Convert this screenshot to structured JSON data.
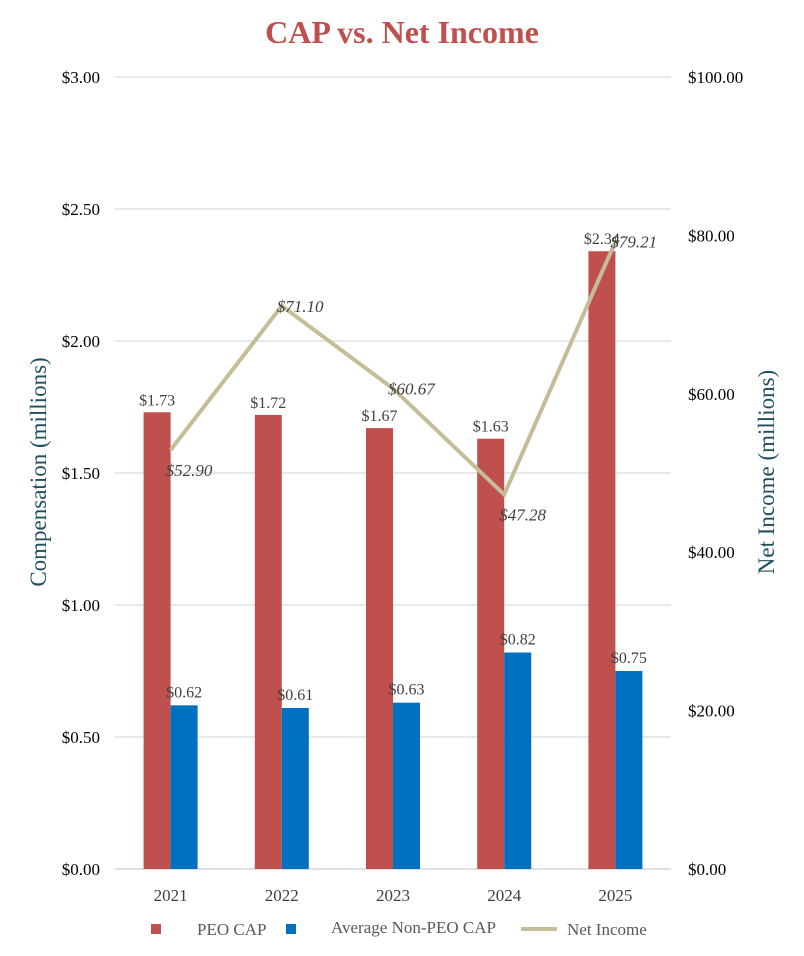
{
  "chart_data": {
    "type": "bar",
    "title": "CAP vs. Net Income",
    "categories": [
      "2021",
      "2022",
      "2023",
      "2024",
      "2025"
    ],
    "series": [
      {
        "name": "PEO CAP",
        "axis": "left",
        "kind": "bar",
        "values": [
          1.73,
          1.72,
          1.67,
          1.63,
          2.34
        ],
        "labels": [
          "$1.73",
          "$1.72",
          "$1.67",
          "$1.63",
          "$2.34"
        ]
      },
      {
        "name": "Average Non-PEO CAP",
        "axis": "left",
        "kind": "bar",
        "values": [
          0.62,
          0.61,
          0.63,
          0.82,
          0.75
        ],
        "labels": [
          "$0.62",
          "$0.61",
          "$0.63",
          "$0.82",
          "$0.75"
        ]
      },
      {
        "name": "Net Income",
        "axis": "right",
        "kind": "line",
        "values": [
          52.9,
          71.1,
          60.67,
          47.28,
          79.21
        ],
        "labels": [
          "$52.90",
          "$71.10",
          "$60.67",
          "$47.28",
          "$79.21"
        ]
      }
    ],
    "left_axis": {
      "label": "Compensation (millions)",
      "range": [
        0,
        3
      ],
      "ticks": [
        0,
        0.5,
        1.0,
        1.5,
        2.0,
        2.5,
        3.0
      ],
      "tick_labels": [
        "$0.00",
        "$0.50",
        "$1.00",
        "$1.50",
        "$2.00",
        "$2.50",
        "$3.00"
      ]
    },
    "right_axis": {
      "label": "Net Income (millions)",
      "range": [
        0,
        100
      ],
      "ticks": [
        0,
        20,
        40,
        60,
        80,
        100
      ],
      "tick_labels": [
        "$0.00",
        "$20.00",
        "$40.00",
        "$60.00",
        "$80.00",
        "$100.00"
      ]
    },
    "legend": {
      "placement": "bottom",
      "items": [
        "PEO CAP",
        "Average Non-PEO CAP",
        "Net Income"
      ]
    },
    "grid": true,
    "colors": {
      "title": "#c0504d",
      "peo_cap": "#c0504d",
      "non_peo_cap": "#0070c0",
      "net_income": "#c4bd97",
      "axis_label": "#1f4e5f",
      "gridline": "#d9d9d9",
      "text": "#000000",
      "data_label": "#404040"
    }
  }
}
